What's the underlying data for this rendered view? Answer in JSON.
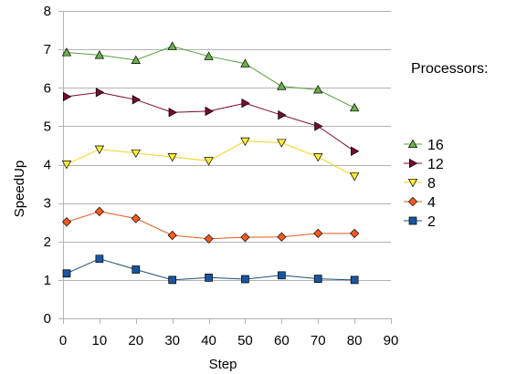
{
  "chart_data": {
    "type": "line",
    "xlabel": "Step",
    "ylabel": "SpeedUp",
    "xlim": [
      0,
      90
    ],
    "ylim": [
      0,
      8
    ],
    "xticks": [
      0,
      10,
      20,
      30,
      40,
      50,
      60,
      70,
      80,
      90
    ],
    "yticks": [
      0,
      1,
      2,
      3,
      4,
      5,
      6,
      7,
      8
    ],
    "grid": "horizontal",
    "legend_title": "Processors:",
    "legend_position": "right",
    "x": [
      1,
      10,
      20,
      30,
      40,
      50,
      60,
      70,
      80
    ],
    "series": [
      {
        "name": "16",
        "color": "#5b9e3c",
        "fill": "#6ab04a",
        "marker": "triangle-up",
        "values": [
          6.92,
          6.85,
          6.72,
          7.08,
          6.82,
          6.63,
          6.04,
          5.95,
          5.48
        ]
      },
      {
        "name": "12",
        "color": "#7b0a2f",
        "fill": "#7b0a2f",
        "marker": "triangle-right",
        "values": [
          5.77,
          5.88,
          5.69,
          5.36,
          5.39,
          5.6,
          5.29,
          5.0,
          4.35
        ]
      },
      {
        "name": "8",
        "color": "#f5d21a",
        "fill": "#ffeb3b",
        "marker": "triangle-down",
        "values": [
          4.01,
          4.4,
          4.3,
          4.2,
          4.1,
          4.61,
          4.57,
          4.2,
          3.7
        ]
      },
      {
        "name": "4",
        "color": "#e8591a",
        "fill": "#ff5a1f",
        "marker": "diamond",
        "values": [
          2.51,
          2.78,
          2.6,
          2.16,
          2.07,
          2.11,
          2.12,
          2.21,
          2.21
        ]
      },
      {
        "name": "2",
        "color": "#1f4e79",
        "fill": "#1a56a0",
        "marker": "square",
        "values": [
          1.17,
          1.55,
          1.27,
          1.0,
          1.06,
          1.02,
          1.12,
          1.03,
          1.0
        ]
      }
    ]
  }
}
